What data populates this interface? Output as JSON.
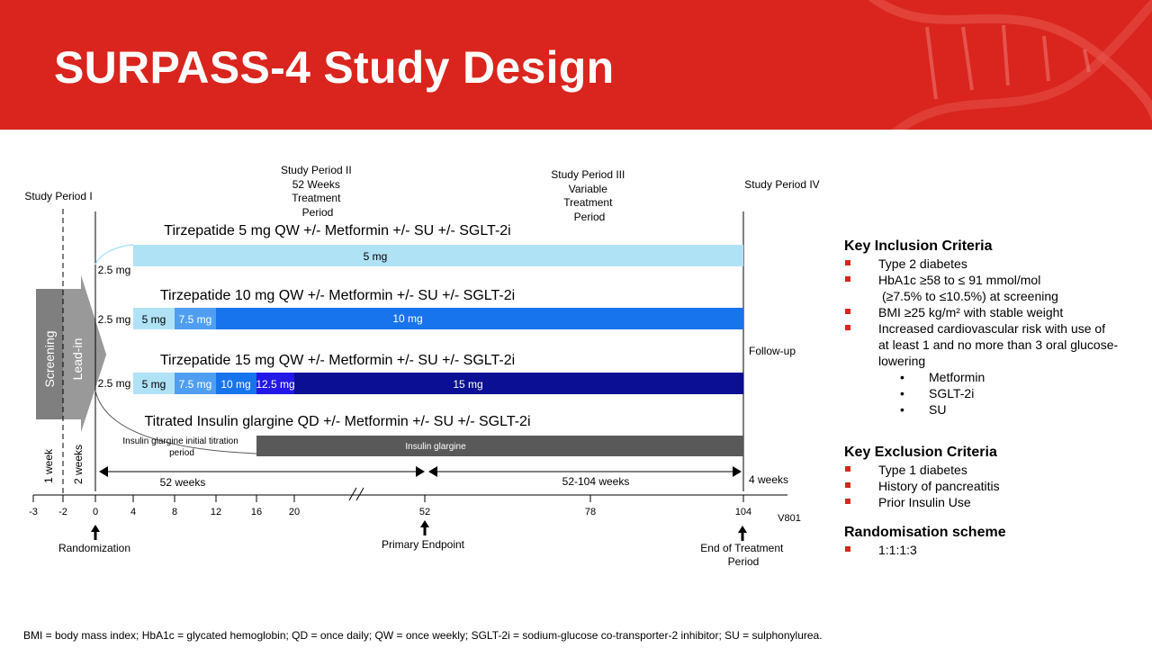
{
  "title": "SURPASS-4 Study Design",
  "periods": {
    "p1": "Study Period I",
    "p2": [
      "Study Period II",
      "52 Weeks",
      "Treatment",
      "Period"
    ],
    "p3": [
      "Study Period III",
      "Variable",
      "Treatment",
      "Period"
    ],
    "p4": "Study Period IV"
  },
  "arrow_labels": {
    "screening": "Screening",
    "leadin": "Lead-in"
  },
  "durations": {
    "one_week": "1 week",
    "two_weeks": "2 weeks",
    "fifty_two": "52 weeks",
    "variable": "52-104 weeks",
    "four_weeks": "4 weeks"
  },
  "arms": [
    {
      "title": "Tirzepatide 5 mg QW +/- Metformin +/- SU +/- SGLT-2i",
      "start": "2.5 mg",
      "main": "5 mg"
    },
    {
      "title": "Tirzepatide 10 mg QW +/- Metformin +/- SU +/- SGLT-2i",
      "start": "2.5 mg",
      "steps": [
        "5 mg",
        "7.5 mg"
      ],
      "main": "10 mg"
    },
    {
      "title": "Tirzepatide 15 mg QW +/- Metformin +/- SU +/- SGLT-2i",
      "start": "2.5 mg",
      "steps": [
        "5 mg",
        "7.5 mg",
        "10 mg",
        "12.5 mg"
      ],
      "main": "15 mg"
    },
    {
      "title": "Titrated Insulin glargine QD +/- Metformin +/- SU +/- SGLT-2i",
      "titration": [
        "Insulin glargine initial titration",
        "period"
      ],
      "main": "Insulin glargine"
    }
  ],
  "follow_up": "Follow-up",
  "axis": {
    "ticks": [
      "-3",
      "-2",
      "0",
      "4",
      "8",
      "12",
      "16",
      "20",
      "52",
      "78",
      "104"
    ],
    "code": "V801"
  },
  "milestones": {
    "randomization": "Randomization",
    "primary": "Primary Endpoint",
    "end": [
      "End of Treatment",
      "Period"
    ]
  },
  "colors": {
    "header": "#d9251d",
    "light_blue": "#b0e2f6",
    "mid_blue": "#4f9ef0",
    "bright_blue": "#1874ec",
    "navy": "#0a0f94",
    "purple_blue": "#2318e6",
    "gray": "#595959"
  },
  "inclusion": {
    "title": "Key Inclusion Criteria",
    "items": [
      "Type 2 diabetes",
      "HbA1c ≥58 to ≤ 91 mmol/mol",
      "(≥7.5% to ≤10.5%) at screening",
      "BMI ≥25 kg/m² with stable weight",
      "Increased cardiovascular risk with use of",
      "at least 1 and no more than 3 oral glucose-",
      "lowering"
    ],
    "sub": [
      "Metformin",
      "SGLT-2i",
      "SU"
    ]
  },
  "exclusion": {
    "title": "Key Exclusion Criteria",
    "items": [
      "Type 1 diabetes",
      "History of pancreatitis",
      "Prior Insulin Use"
    ]
  },
  "randomisation": {
    "title": "Randomisation scheme",
    "items": [
      "1:1:1:3"
    ]
  },
  "footnote": "BMI = body mass index; HbA1c = glycated hemoglobin; QD = once daily; QW = once weekly; SGLT-2i = sodium-glucose co-transporter-2 inhibitor; SU = sulphonylurea."
}
